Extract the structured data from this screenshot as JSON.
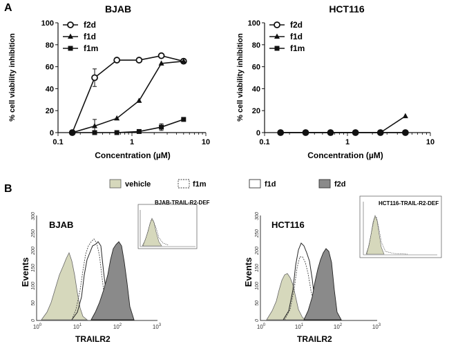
{
  "panel_a": {
    "label": "A",
    "charts": [
      {
        "title": "BJAB",
        "xlabel": "Concentration (µM)",
        "ylabel": "% cell viability inhibition",
        "yticks": [
          "0",
          "20",
          "40",
          "60",
          "80",
          "100"
        ],
        "xticks": [
          "0.1",
          "1",
          "10"
        ],
        "legend": [
          "f2d",
          "f1d",
          "f1m"
        ]
      },
      {
        "title": "HCT116",
        "xlabel": "Concentration (µM)",
        "ylabel": "% cell viability inhibition",
        "yticks": [
          "0",
          "20",
          "40",
          "60",
          "80",
          "100"
        ],
        "xticks": [
          "0.1",
          "1",
          "10"
        ],
        "legend": [
          "f2d",
          "f1d",
          "f1m"
        ]
      }
    ]
  },
  "panel_b": {
    "label": "B",
    "legend": [
      "vehicle",
      "f1m",
      "f1d",
      "f2d"
    ],
    "histograms": [
      {
        "cell_label": "BJAB",
        "inset_label": "BJAB-TRAIL-R2-DEF",
        "ylabel": "Events",
        "xlabel": "TRAILR2",
        "yticks": [
          "0",
          "50",
          "100",
          "150",
          "200",
          "250",
          "300"
        ],
        "xtick_base": "10",
        "xtick_exps": [
          "0",
          "1",
          "2",
          "3"
        ]
      },
      {
        "cell_label": "HCT116",
        "inset_label": "HCT116-TRAIL-R2-DEF",
        "ylabel": "Events",
        "xlabel": "TRAILR2",
        "yticks": [
          "0",
          "50",
          "100",
          "150",
          "200",
          "250",
          "300"
        ],
        "xtick_base": "10",
        "xtick_exps": [
          "0",
          "1",
          "2",
          "3"
        ]
      }
    ]
  },
  "colors": {
    "axis": "#111111",
    "vehicle_fill": "#d6d8bc",
    "f2d_fill": "#8a8a8a",
    "f1d_fill": "#ffffff"
  },
  "chart_data": [
    {
      "type": "line",
      "title": "BJAB",
      "xlabel": "Concentration (µM)",
      "ylabel": "% cell viability inhibition",
      "xscale": "log",
      "xlim": [
        0.1,
        10
      ],
      "ylim": [
        0,
        100
      ],
      "series": [
        {
          "name": "f2d",
          "marker": "open-circle",
          "x": [
            0.156,
            0.313,
            0.625,
            1.25,
            2.5,
            5
          ],
          "y": [
            0,
            50,
            66,
            66,
            70,
            65
          ],
          "err": [
            0,
            8,
            2,
            0,
            1,
            0
          ]
        },
        {
          "name": "f1d",
          "marker": "triangle",
          "x": [
            0.156,
            0.313,
            0.625,
            1.25,
            2.5,
            5
          ],
          "y": [
            0,
            6,
            13,
            29,
            63,
            65
          ],
          "err": [
            0,
            6,
            0,
            0,
            0,
            0
          ]
        },
        {
          "name": "f1m",
          "marker": "square",
          "x": [
            0.156,
            0.313,
            0.625,
            1.25,
            2.5,
            5
          ],
          "y": [
            0,
            0,
            0,
            1,
            5,
            12
          ],
          "err": [
            0,
            0,
            0,
            0,
            3,
            0
          ]
        }
      ]
    },
    {
      "type": "line",
      "title": "HCT116",
      "xlabel": "Concentration (µM)",
      "ylabel": "% cell viability inhibition",
      "xscale": "log",
      "xlim": [
        0.1,
        10
      ],
      "ylim": [
        0,
        100
      ],
      "series": [
        {
          "name": "f2d",
          "marker": "open-circle",
          "x": [
            0.156,
            0.313,
            0.625,
            1.25,
            2.5,
            5
          ],
          "y": [
            0,
            0,
            0,
            0,
            0,
            0
          ],
          "err": [
            0,
            0,
            0,
            0,
            0,
            0
          ]
        },
        {
          "name": "f1d",
          "marker": "triangle",
          "x": [
            0.156,
            0.313,
            0.625,
            1.25,
            2.5,
            5
          ],
          "y": [
            0,
            0,
            0,
            0,
            0,
            15
          ],
          "err": [
            0,
            0,
            0,
            0,
            0,
            0
          ]
        },
        {
          "name": "f1m",
          "marker": "square",
          "x": [
            0.156,
            0.313,
            0.625,
            1.25,
            2.5,
            5
          ],
          "y": [
            0,
            0,
            0,
            0,
            0,
            0
          ],
          "err": [
            0,
            0,
            0,
            0,
            0,
            0
          ]
        }
      ]
    }
  ]
}
